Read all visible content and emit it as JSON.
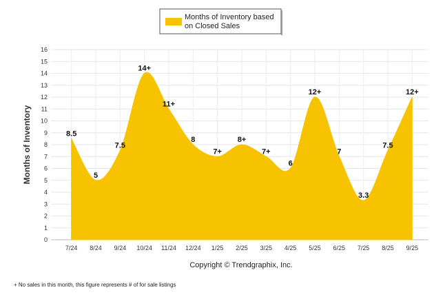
{
  "chart_data": {
    "type": "area",
    "title": "",
    "legend": [
      "Months of Inventory based",
      "on Closed Sales"
    ],
    "ylabel": "Months of Inventory",
    "xlabel": "",
    "ylim": [
      0,
      16
    ],
    "yticks": [
      0,
      1,
      2,
      3,
      4,
      5,
      6,
      7,
      8,
      9,
      10,
      11,
      12,
      13,
      14,
      15,
      16
    ],
    "grid": true,
    "color": "#F7C300",
    "categories": [
      "7/24",
      "8/24",
      "9/24",
      "10/24",
      "11/24",
      "12/24",
      "1/25",
      "2/25",
      "3/25",
      "4/25",
      "5/25",
      "6/25",
      "7/25",
      "8/25",
      "9/25"
    ],
    "values": [
      8.5,
      5,
      7.5,
      14,
      11,
      8,
      7,
      8,
      7,
      6,
      12,
      7,
      3.3,
      7.5,
      12
    ],
    "data_labels": [
      "8.5",
      "5",
      "7.5",
      "14+",
      "11+",
      "8",
      "7+",
      "8+",
      "7+",
      "6",
      "12+",
      "7",
      "3.3",
      "7.5",
      "12+"
    ]
  },
  "copyright": "Copyright © Trendgraphix, Inc.",
  "footnote": "+ No sales in this month, this figure represents # of for sale listings"
}
